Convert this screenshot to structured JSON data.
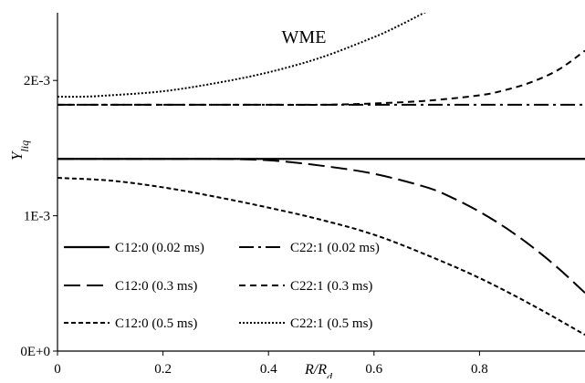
{
  "chart_data": {
    "type": "line",
    "title": "WME",
    "xlabel": "R/R_d",
    "ylabel": "Y_liq",
    "x_range": [
      0,
      1.0
    ],
    "y_range": [
      0,
      0.0025
    ],
    "x_ticks": [
      0,
      0.2,
      0.4,
      0.6,
      0.8
    ],
    "x_tick_labels": [
      "0",
      "0.2",
      "0.4",
      "0.6",
      "0.8"
    ],
    "y_ticks": [
      0,
      0.001,
      0.002
    ],
    "y_tick_labels": [
      "0E+0",
      "1E-3",
      "2E-3"
    ],
    "grid": false,
    "legend_position": "bottom-left",
    "legend_columns": 2,
    "series": [
      {
        "name": "C12:0 (0.02 ms)",
        "dash": "solid",
        "x": [
          0,
          0.2,
          0.4,
          0.6,
          0.8,
          1.0
        ],
        "y": [
          0.00142,
          0.00142,
          0.00142,
          0.00142,
          0.00142,
          0.00142
        ]
      },
      {
        "name": "C22:1 (0.02 ms)",
        "dash": "dashdot",
        "x": [
          0,
          0.2,
          0.4,
          0.6,
          0.8,
          1.0
        ],
        "y": [
          0.00182,
          0.00182,
          0.00182,
          0.00182,
          0.00182,
          0.00182
        ]
      },
      {
        "name": "C12:0 (0.3 ms)",
        "dash": "longdash",
        "x": [
          0,
          0.1,
          0.2,
          0.3,
          0.4,
          0.5,
          0.6,
          0.7,
          0.75,
          0.8,
          0.85,
          0.9,
          0.95,
          1.0
        ],
        "y": [
          0.00142,
          0.00142,
          0.00142,
          0.00142,
          0.00141,
          0.00137,
          0.00131,
          0.00121,
          0.00113,
          0.00103,
          0.00091,
          0.00077,
          0.00061,
          0.00043
        ]
      },
      {
        "name": "C22:1 (0.3 ms)",
        "dash": "dash",
        "x": [
          0,
          0.2,
          0.4,
          0.5,
          0.6,
          0.7,
          0.8,
          0.85,
          0.9,
          0.95,
          1.0
        ],
        "y": [
          0.00182,
          0.00182,
          0.00182,
          0.00182,
          0.00183,
          0.00185,
          0.00189,
          0.00193,
          0.00199,
          0.00208,
          0.00222
        ]
      },
      {
        "name": "C12:0 (0.5 ms)",
        "dash": "shortdash",
        "x": [
          0,
          0.1,
          0.2,
          0.3,
          0.4,
          0.5,
          0.6,
          0.7,
          0.8,
          0.9,
          1.0
        ],
        "y": [
          0.00128,
          0.00126,
          0.00121,
          0.00114,
          0.00106,
          0.00097,
          0.00086,
          0.00071,
          0.00054,
          0.00034,
          0.00012
        ]
      },
      {
        "name": "C22:1 (0.5 ms)",
        "dash": "dot",
        "x": [
          0,
          0.05,
          0.1,
          0.2,
          0.3,
          0.4,
          0.5,
          0.6,
          0.65,
          0.7
        ],
        "y": [
          0.00188,
          0.00188,
          0.00189,
          0.00192,
          0.00198,
          0.00206,
          0.00217,
          0.00232,
          0.00241,
          0.00251
        ]
      }
    ]
  }
}
